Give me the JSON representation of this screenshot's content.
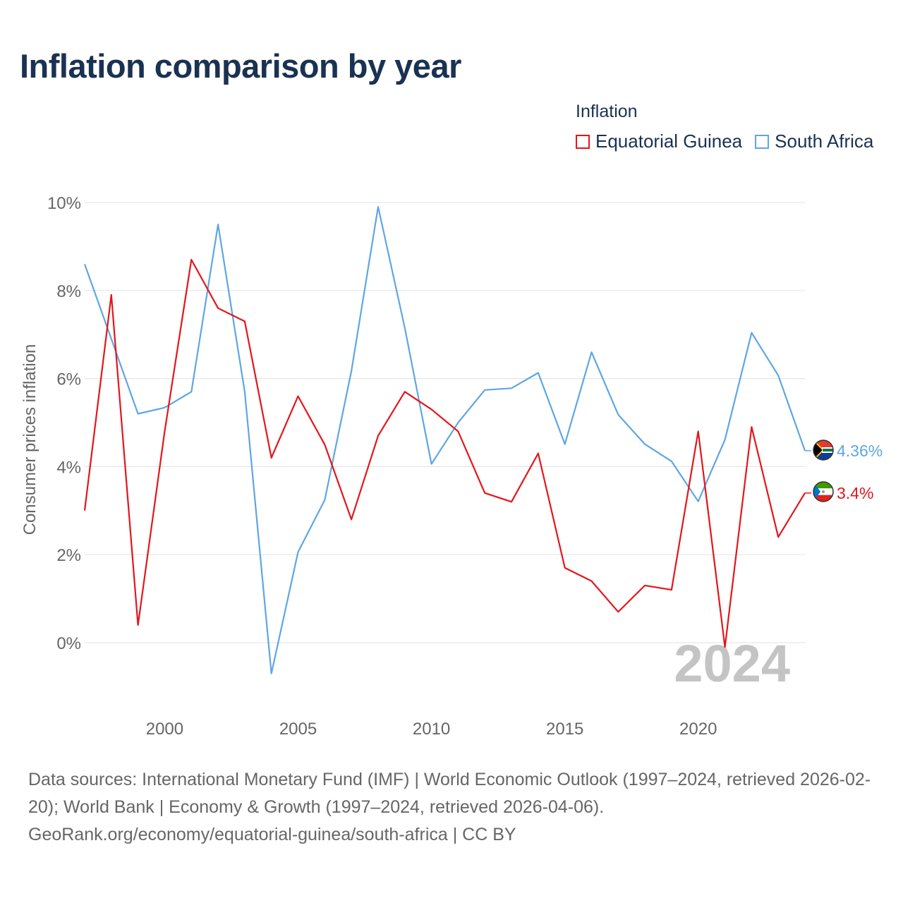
{
  "title": "Inflation comparison by year",
  "legend": {
    "title": "Inflation",
    "items": [
      {
        "label": "Equatorial Guinea",
        "color": "#e3161b"
      },
      {
        "label": "South Africa",
        "color": "#5fa6e3"
      }
    ]
  },
  "year_watermark": "2024",
  "sources": {
    "line1": "Data sources: International Monetary Fund (IMF) | World Economic Outlook (1997–2024, retrieved 2026-02-20); World Bank | Economy & Growth (1997–2024, retrieved 2026-04-06).",
    "line2": "GeoRank.org/economy/equatorial-guinea/south-africa | CC BY"
  },
  "chart_data": {
    "type": "line",
    "ylabel": "Consumer prices inflation",
    "xlabel": "",
    "xlim": [
      1997,
      2024
    ],
    "ylim": [
      -1.6,
      10.6
    ],
    "y_ticks": [
      0,
      2,
      4,
      6,
      8,
      10
    ],
    "y_tick_labels": [
      "0%",
      "2%",
      "4%",
      "6%",
      "8%",
      "10%"
    ],
    "x_ticks": [
      2000,
      2005,
      2010,
      2015,
      2020
    ],
    "x_tick_labels": [
      "2000",
      "2005",
      "2010",
      "2015",
      "2020"
    ],
    "grid": true,
    "x": [
      1997,
      1998,
      1999,
      2000,
      2001,
      2002,
      2003,
      2004,
      2005,
      2006,
      2007,
      2008,
      2009,
      2010,
      2011,
      2012,
      2013,
      2014,
      2015,
      2016,
      2017,
      2018,
      2019,
      2020,
      2021,
      2022,
      2023,
      2024
    ],
    "series": [
      {
        "name": "Equatorial Guinea",
        "color": "#e3161b",
        "end_label": "3.4%",
        "values": [
          3.0,
          7.9,
          0.4,
          4.8,
          8.7,
          7.6,
          7.3,
          4.2,
          5.6,
          4.5,
          2.8,
          4.7,
          5.7,
          5.3,
          4.8,
          3.4,
          3.2,
          4.3,
          1.7,
          1.4,
          0.7,
          1.3,
          1.2,
          4.8,
          -0.1,
          4.9,
          2.4,
          3.4
        ]
      },
      {
        "name": "South Africa",
        "color": "#5fa6e3",
        "end_label": "4.36%",
        "values": [
          8.6,
          6.9,
          5.2,
          5.34,
          5.7,
          9.5,
          5.7,
          -0.7,
          2.06,
          3.24,
          6.17,
          9.9,
          7.15,
          4.06,
          5.0,
          5.74,
          5.78,
          6.13,
          4.51,
          6.6,
          5.18,
          4.51,
          4.12,
          3.21,
          4.61,
          7.04,
          6.07,
          4.36
        ]
      }
    ]
  }
}
